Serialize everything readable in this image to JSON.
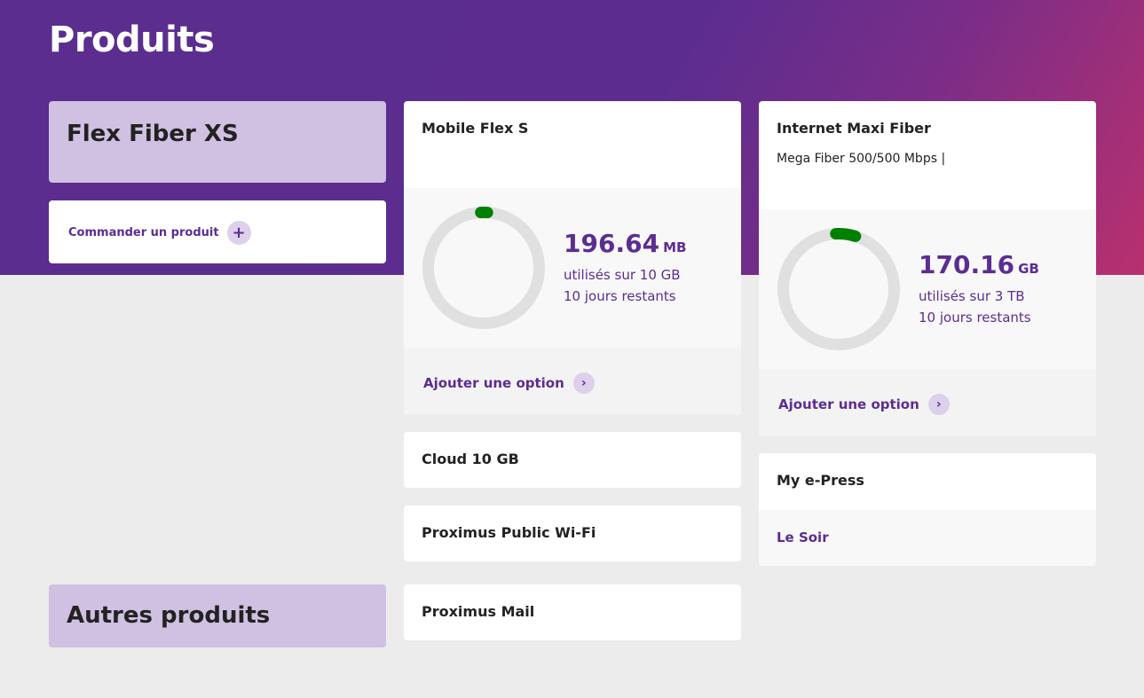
{
  "page": {
    "title": "Produits"
  },
  "left": {
    "plan": "Flex Fiber XS",
    "order_label": "Commander un produit",
    "others": "Autres produits"
  },
  "mobile": {
    "title": "Mobile Flex S",
    "used": "196.64",
    "unit": "MB",
    "of": "utilisés sur 10 GB",
    "days": "10 jours restants",
    "option": "Ajouter une option",
    "used_fraction": 0.019
  },
  "internet": {
    "title": "Internet Maxi Fiber",
    "subtitle": "Mega Fiber 500/500 Mbps |",
    "used": "170.16",
    "unit": "GB",
    "of": "utilisés sur 3 TB",
    "days": "10 jours restants",
    "option": "Ajouter une option",
    "used_fraction": 0.057
  },
  "services": [
    "Cloud 10 GB",
    "Proximus Public Wi-Fi",
    "Proximus Mail"
  ],
  "epress": {
    "title": "My e-Press",
    "item": "Le Soir"
  },
  "colors": {
    "brand": "#5c2d91",
    "progress": "#008000",
    "track": "#e0e0e0"
  }
}
